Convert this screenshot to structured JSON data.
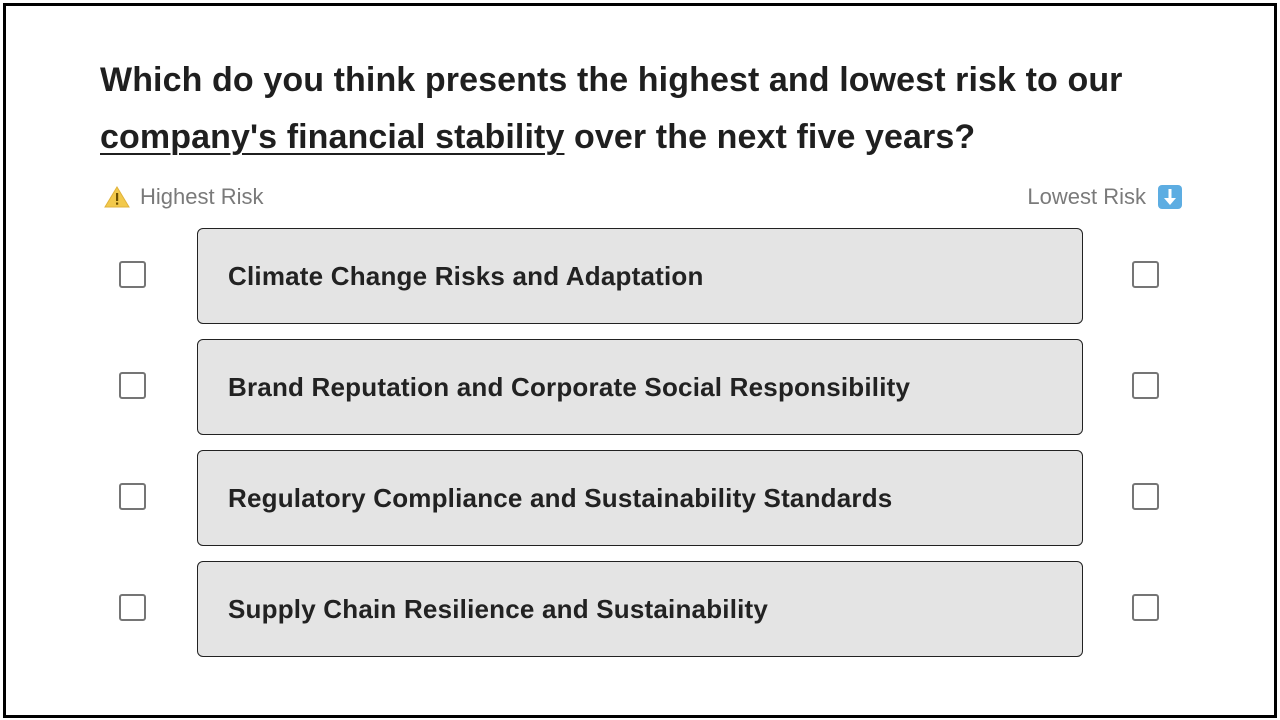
{
  "question": {
    "text_before": "Which do you think presents the highest and lowest risk to our ",
    "text_emphasis": "company's financial stability",
    "text_after": " over the next five years?"
  },
  "legend": {
    "highest_label": "Highest Risk",
    "highest_icon": "warning-icon",
    "lowest_label": "Lowest Risk",
    "lowest_icon": "down-arrow-icon"
  },
  "options": [
    {
      "label": "Climate Change Risks and Adaptation",
      "highest_checked": false,
      "lowest_checked": false
    },
    {
      "label": "Brand Reputation and Corporate Social Responsibility",
      "highest_checked": false,
      "lowest_checked": false
    },
    {
      "label": "Regulatory Compliance and Sustainability Standards",
      "highest_checked": false,
      "lowest_checked": false
    },
    {
      "label": "Supply Chain Resilience and Sustainability",
      "highest_checked": false,
      "lowest_checked": false
    }
  ],
  "colors": {
    "option_background": "#e4e4e4",
    "legend_text": "#7a7a7a",
    "warning_icon": "#f2c94c",
    "down_arrow_icon": "#5dade2"
  }
}
